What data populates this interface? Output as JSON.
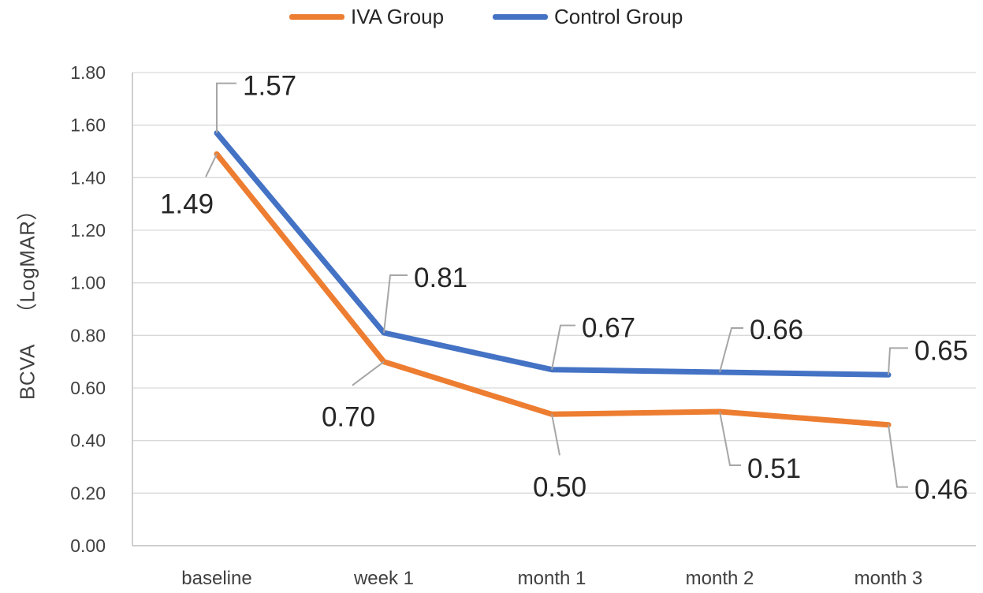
{
  "chart_data": {
    "type": "line",
    "title": "",
    "categories": [
      "baseline",
      "week 1",
      "month 1",
      "month 2",
      "month 3"
    ],
    "series": [
      {
        "name": "IVA Group",
        "color": "#ED7D31",
        "values": [
          1.49,
          0.7,
          0.5,
          0.51,
          0.46
        ],
        "labels": [
          "1.49",
          "0.70",
          "0.50",
          "0.51",
          "0.46"
        ]
      },
      {
        "name": "Control Group",
        "color": "#4472C4",
        "values": [
          1.57,
          0.81,
          0.67,
          0.66,
          0.65
        ],
        "labels": [
          "1.57",
          "0.81",
          "0.67",
          "0.66",
          "0.65"
        ]
      }
    ],
    "ylabel_prefix": "BCVA",
    "ylabel_unit": "（LogMAR）",
    "xlabel": "",
    "ylim": [
      0,
      1.8
    ],
    "yticks": [
      "0.00",
      "0.20",
      "0.40",
      "0.60",
      "0.80",
      "1.00",
      "1.20",
      "1.40",
      "1.60",
      "1.80"
    ],
    "grid": true,
    "legend_position": "top-center"
  }
}
